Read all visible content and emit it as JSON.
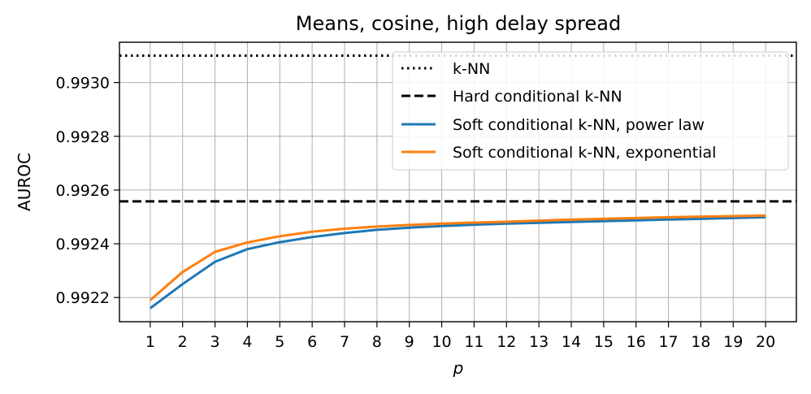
{
  "chart_data": {
    "type": "line",
    "title": "Means, cosine, high delay spread",
    "xlabel": "p",
    "ylabel": "AUROC",
    "x": [
      1,
      2,
      3,
      4,
      5,
      6,
      7,
      8,
      9,
      10,
      11,
      12,
      13,
      14,
      15,
      16,
      17,
      18,
      19,
      20
    ],
    "xlim": [
      0.05,
      20.95
    ],
    "ylim": [
      0.99211,
      0.99315
    ],
    "yticks": [
      0.9922,
      0.9924,
      0.9926,
      0.9928,
      0.993
    ],
    "ytick_labels": [
      "0.9922",
      "0.9924",
      "0.9926",
      "0.9928",
      "0.9930"
    ],
    "grid": true,
    "legend_position": "top-right",
    "hlines": [
      {
        "name": "k-NN",
        "value": 0.9931,
        "style": "dotted",
        "color": "#000000"
      },
      {
        "name": "Hard conditional k-NN",
        "value": 0.992558,
        "style": "dashed",
        "color": "#000000"
      }
    ],
    "series": [
      {
        "name": "Soft conditional k-NN, power law",
        "color": "#1f77b4",
        "values": [
          0.99216,
          0.99225,
          0.992333,
          0.99238,
          0.992406,
          0.992425,
          0.99244,
          0.992452,
          0.99246,
          0.992466,
          0.992471,
          0.992475,
          0.992478,
          0.992481,
          0.992484,
          0.992487,
          0.99249,
          0.992493,
          0.992496,
          0.992499
        ]
      },
      {
        "name": "Soft conditional k-NN, exponential",
        "color": "#ff7f0e",
        "values": [
          0.99219,
          0.992295,
          0.99237,
          0.992405,
          0.992428,
          0.992445,
          0.992456,
          0.992464,
          0.99247,
          0.992475,
          0.992479,
          0.992482,
          0.992486,
          0.99249,
          0.992493,
          0.992496,
          0.992499,
          0.992501,
          0.992503,
          0.992505
        ]
      }
    ]
  }
}
